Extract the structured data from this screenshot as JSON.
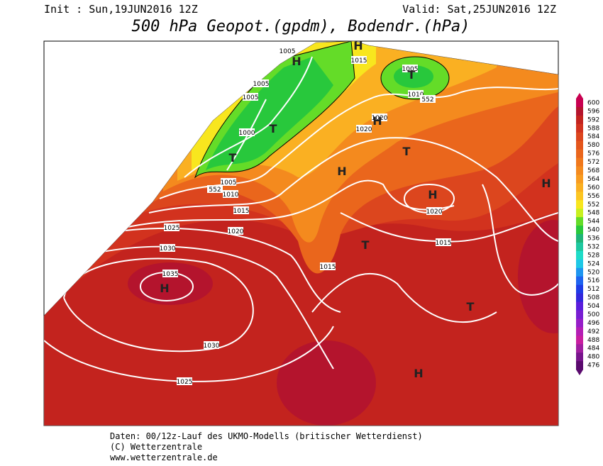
{
  "header": {
    "init": "Init : Sun,19JUN2016 12Z",
    "valid": "Valid: Sat,25JUN2016 12Z",
    "title": "500 hPa Geopot.(gpdm), Bodendr.(hPa)"
  },
  "map": {
    "isobar_labels": [
      1005,
      1005,
      1005,
      1000,
      1005,
      552,
      1010,
      1015,
      1020,
      1025,
      1030,
      1035,
      1030,
      1025,
      1015,
      1005,
      1010,
      552,
      1020,
      1020,
      1020,
      1015,
      1015
    ],
    "pressure_centers": [
      "H",
      "H",
      "T",
      "T",
      "T",
      "H",
      "H",
      "T",
      "H",
      "H",
      "T",
      "H",
      "T",
      "H"
    ]
  },
  "legend": {
    "levels": [
      600,
      596,
      592,
      588,
      584,
      580,
      576,
      572,
      568,
      564,
      560,
      556,
      552,
      548,
      544,
      540,
      536,
      532,
      528,
      524,
      520,
      516,
      512,
      508,
      504,
      500,
      496,
      492,
      488,
      484,
      480,
      476
    ],
    "colors": [
      "#c80050",
      "#b4142d",
      "#c3231e",
      "#d2321e",
      "#dc461e",
      "#e4561c",
      "#ea661c",
      "#f0781c",
      "#f48a1e",
      "#f89c20",
      "#fab022",
      "#fcc622",
      "#f8e61e",
      "#c8f01e",
      "#64dc28",
      "#28c83c",
      "#1eb478",
      "#1ec8a0",
      "#1edcc8",
      "#1ec8e6",
      "#1e96f0",
      "#1e64f0",
      "#1e3ce6",
      "#3228dc",
      "#5a1edc",
      "#781ed2",
      "#961ec8",
      "#b41eb4",
      "#c81ea0",
      "#a01ea0",
      "#78148c",
      "#5a0a6e"
    ]
  },
  "footer": {
    "line1": "Daten: 00/12z-Lauf des UKMO-Modells (britischer Wetterdienst)",
    "line2": "(C) Wetterzentrale",
    "line3": "www.wetterzentrale.de"
  }
}
